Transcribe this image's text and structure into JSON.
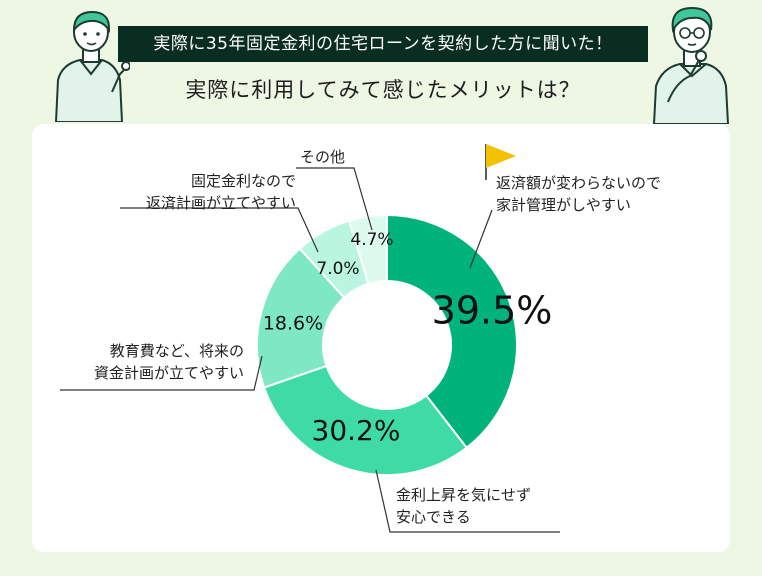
{
  "header": {
    "banner": "実際に35年固定金利の住宅ローンを契約した方に聞いた！",
    "question": "実際に利用してみて感じたメリットは？"
  },
  "colors": {
    "background": "#eef6e4",
    "banner": "#0a2d22",
    "slice1": "#00b37a",
    "slice2": "#3fdba6",
    "slice3": "#7de8c3",
    "slice4": "#b9f5df",
    "slice5": "#dcfaee",
    "flag": "#f2c200"
  },
  "chart_data": {
    "type": "pie",
    "donut": true,
    "slices": [
      {
        "label": "返済額が変わらないので\n家計管理がしやすい",
        "value": 39.5,
        "display": "39.5%"
      },
      {
        "label": "金利上昇を気にせず\n安心できる",
        "value": 30.2,
        "display": "30.2%"
      },
      {
        "label": "教育費など、将来の\n資金計画が立てやすい",
        "value": 18.6,
        "display": "18.6%"
      },
      {
        "label": "固定金利なので\n返済計画が立てやすい",
        "value": 7.0,
        "display": "7.0%"
      },
      {
        "label": "その他",
        "value": 4.7,
        "display": "4.7%"
      }
    ]
  }
}
